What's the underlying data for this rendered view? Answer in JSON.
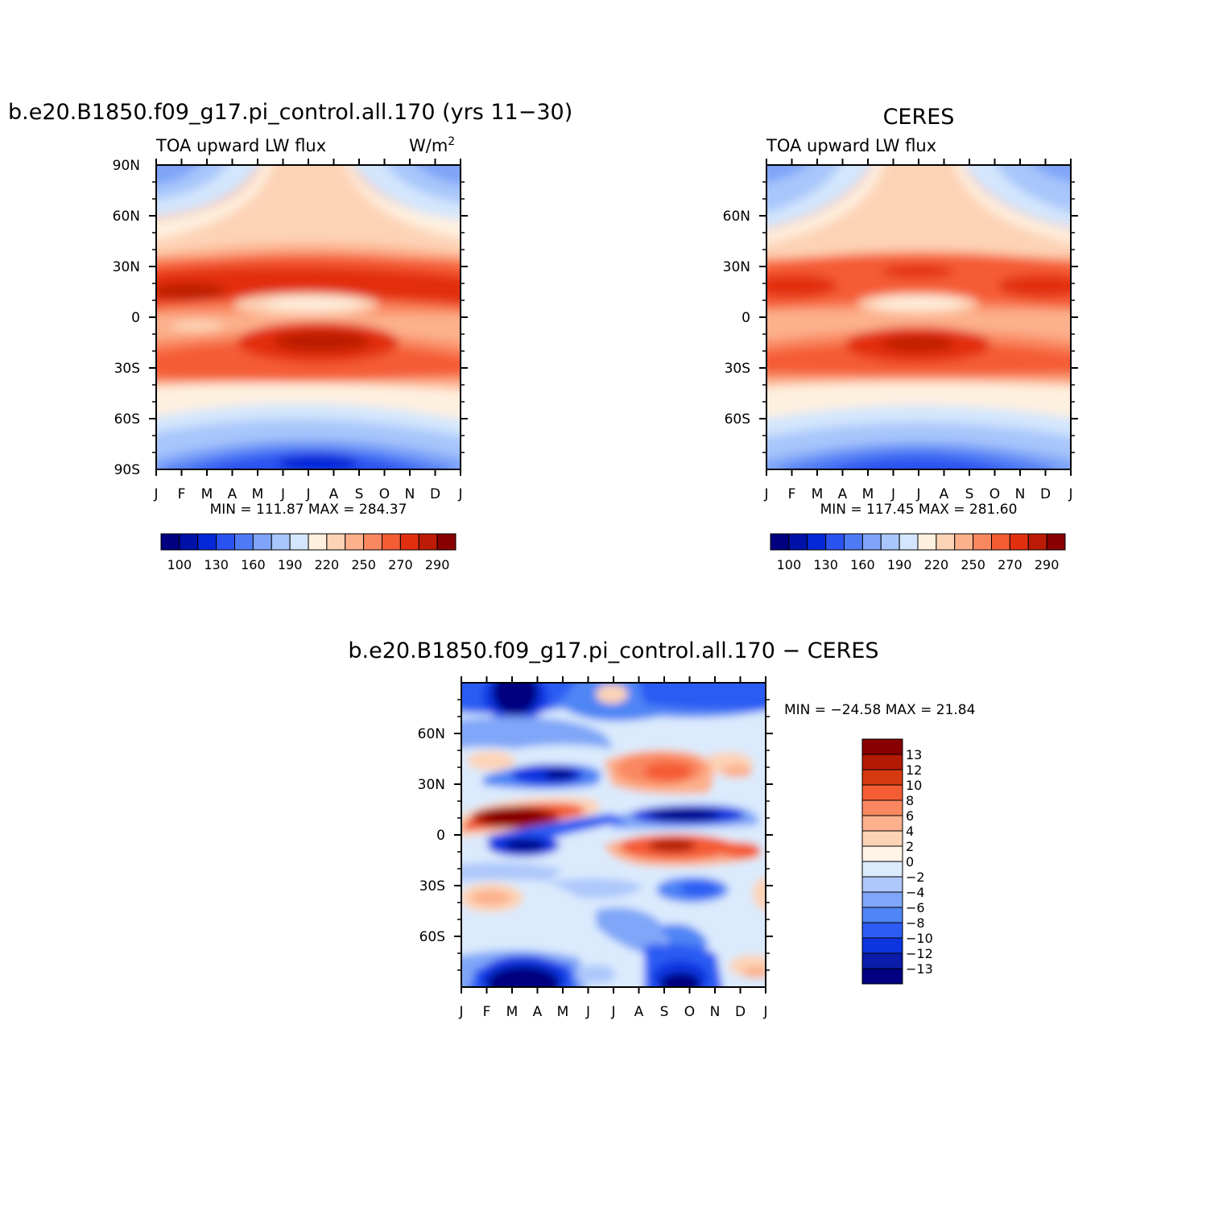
{
  "palette": {
    "levels": [
      "#000080",
      "#0011a8",
      "#0428d8",
      "#2a52f0",
      "#4f7af5",
      "#7fa4f8",
      "#a8c6fb",
      "#d3e6fd",
      "#fef0df",
      "#fdd3b6",
      "#fcb08c",
      "#f98861",
      "#f45c34",
      "#e22f10",
      "#bc1c05",
      "#880000"
    ],
    "diff_levels": [
      "#000080",
      "#0a1ca8",
      "#0c35e0",
      "#2c5cf3",
      "#5085f5",
      "#7fa6f8",
      "#aec8fb",
      "#dbebfd",
      "#fff4e6",
      "#fdd3b6",
      "#fcb08c",
      "#f98861",
      "#f45c34",
      "#d63a10",
      "#b21a03",
      "#880000"
    ]
  },
  "chart_data": [
    {
      "type": "heatmap",
      "title": "b.e20.B1850.f09_g17.pi_control.all.170 (yrs 11−30)",
      "left_label": "TOA upward LW flux",
      "right_label": "W/m",
      "units_sup": "2",
      "x_ticks": [
        "J",
        "F",
        "M",
        "A",
        "M",
        "J",
        "J",
        "A",
        "S",
        "O",
        "N",
        "D",
        "J"
      ],
      "y_ticks": [
        "90N",
        "60N",
        "30N",
        "0",
        "30S",
        "60S",
        "90S"
      ],
      "stats": "MIN =  111.87  MAX =  284.37",
      "colorbar_labels": [
        "100",
        "130",
        "160",
        "190",
        "220",
        "250",
        "270",
        "290"
      ],
      "ylim": [
        -90,
        90
      ]
    },
    {
      "type": "heatmap",
      "title": "CERES",
      "left_label": "TOA upward LW flux",
      "x_ticks": [
        "J",
        "F",
        "M",
        "A",
        "M",
        "J",
        "J",
        "A",
        "S",
        "O",
        "N",
        "D",
        "J"
      ],
      "y_ticks": [
        "60N",
        "30N",
        "0",
        "30S",
        "60S"
      ],
      "stats": "MIN =  117.45  MAX =  281.60",
      "colorbar_labels": [
        "100",
        "130",
        "160",
        "190",
        "220",
        "250",
        "270",
        "290"
      ],
      "ylim": [
        -90,
        90
      ]
    },
    {
      "type": "heatmap",
      "title": "b.e20.B1850.f09_g17.pi_control.all.170  −  CERES",
      "x_ticks": [
        "J",
        "F",
        "M",
        "A",
        "M",
        "J",
        "J",
        "A",
        "S",
        "O",
        "N",
        "D",
        "J"
      ],
      "y_ticks": [
        "60N",
        "30N",
        "0",
        "30S",
        "60S"
      ],
      "stats": "MIN = −24.58  MAX =   21.84",
      "colorbar_labels": [
        "13",
        "12",
        "10",
        "8",
        "6",
        "4",
        "2",
        "0",
        "−2",
        "−4",
        "−6",
        "−8",
        "−10",
        "−12",
        "−13"
      ],
      "ylim": [
        -90,
        90
      ]
    }
  ]
}
